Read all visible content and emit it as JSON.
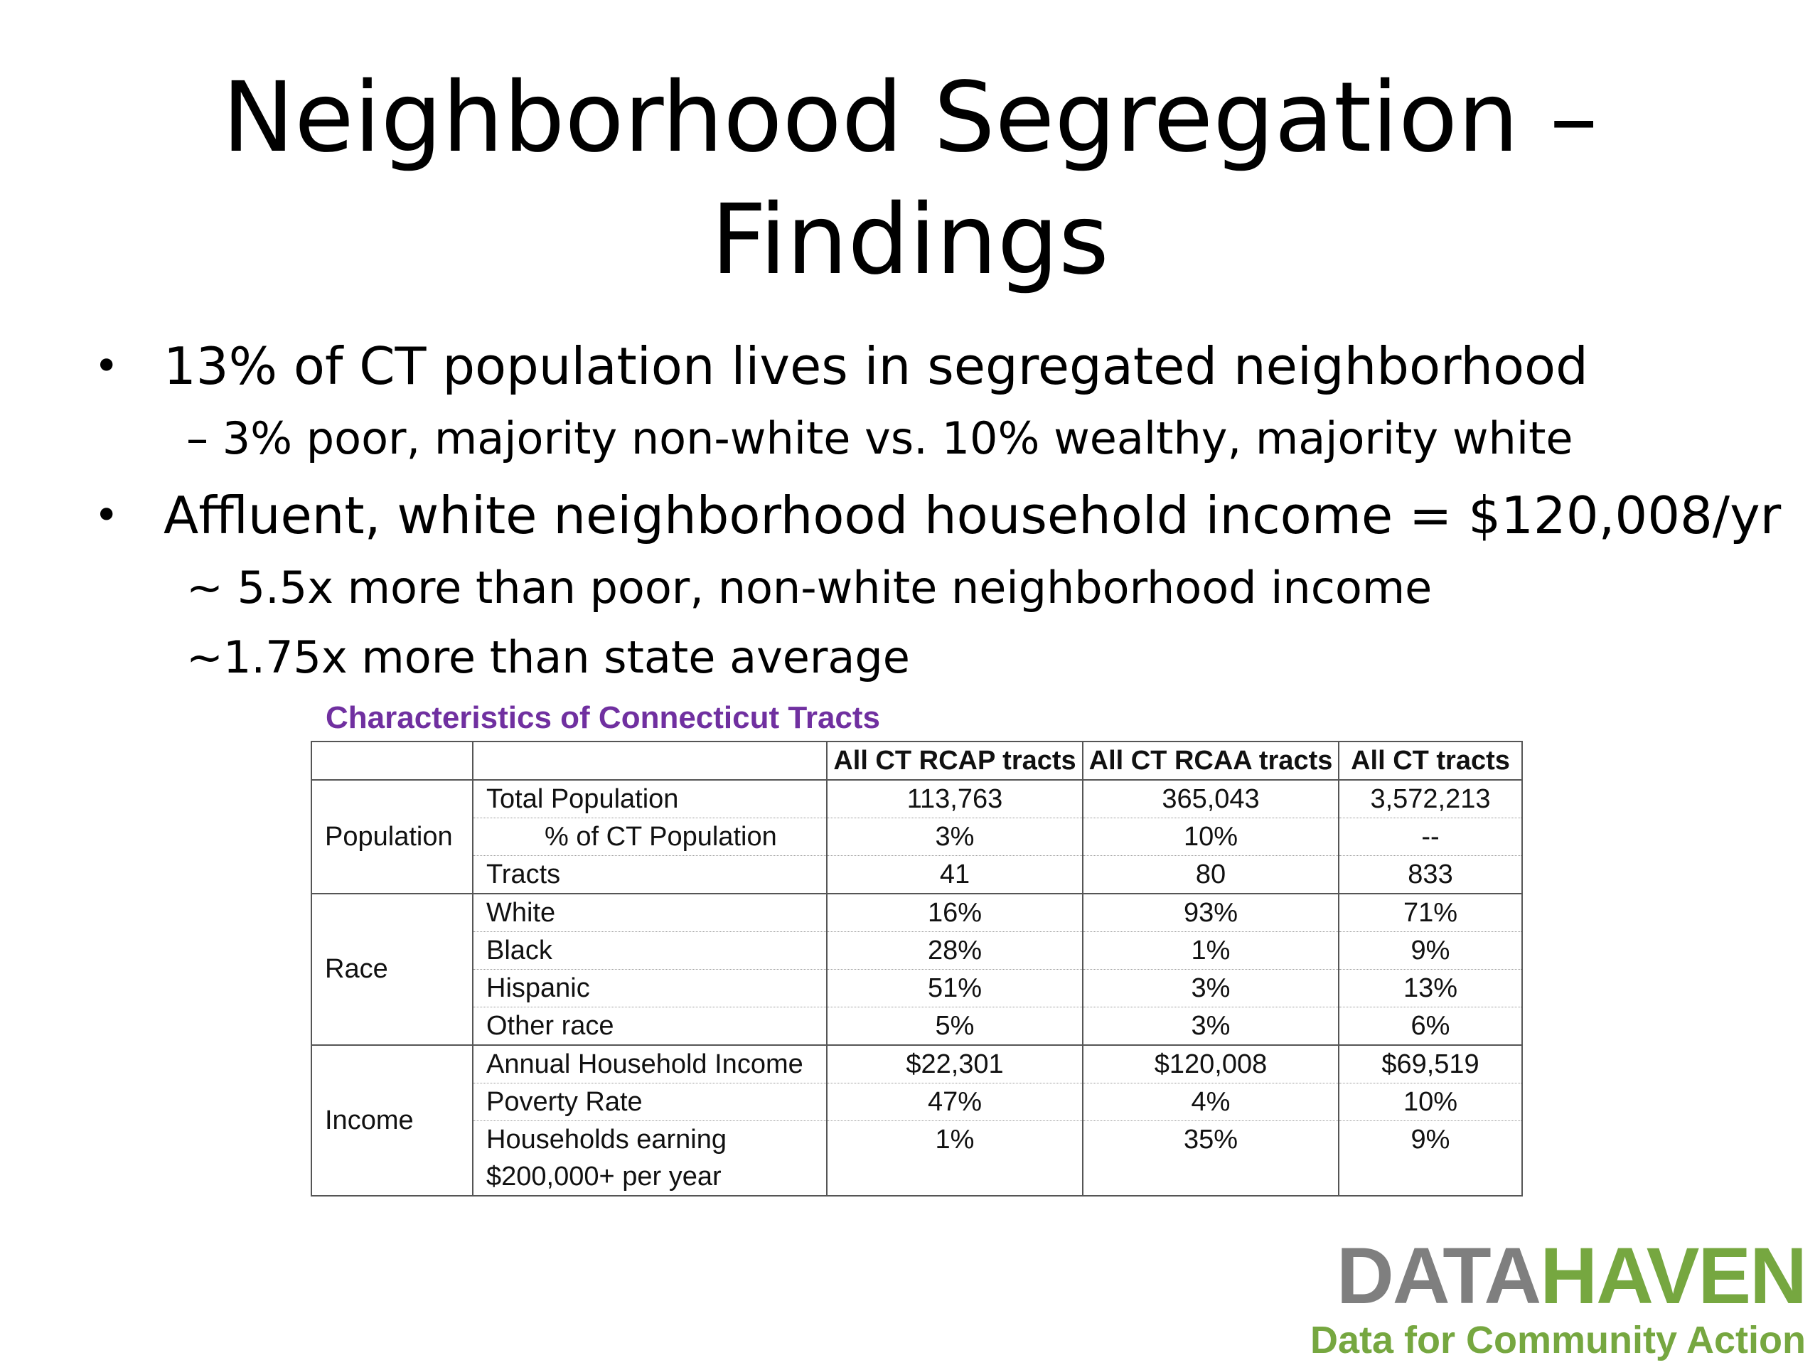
{
  "slide": {
    "title_line1": "Neighborhood Segregation –",
    "title_line2": "Findings"
  },
  "bullets": [
    {
      "text": "13% of CT population lives in segregated neighborhood",
      "subs": [
        "–  3% poor, majority non-white vs. 10% wealthy, majority white"
      ]
    },
    {
      "text": "Affluent, white neighborhood household income = $120,008/yr",
      "subs": [
        "~ 5.5x more than poor, non-white neighborhood income",
        "~1.75x more than state average"
      ]
    }
  ],
  "bullet_symbol": "•",
  "table": {
    "caption": "Characteristics of Connecticut Tracts",
    "headers": [
      "",
      "",
      "All CT RCAP tracts",
      "All CT RCAA tracts",
      "All CT tracts"
    ],
    "groups": [
      {
        "name": "Population",
        "rows": [
          {
            "label": "Total Population",
            "values": [
              "113,763",
              "365,043",
              "3,572,213"
            ]
          },
          {
            "label": "% of CT Population",
            "values": [
              "3%",
              "10%",
              "--"
            ]
          },
          {
            "label": "Tracts",
            "values": [
              "41",
              "80",
              "833"
            ]
          }
        ]
      },
      {
        "name": "Race",
        "rows": [
          {
            "label": "White",
            "values": [
              "16%",
              "93%",
              "71%"
            ]
          },
          {
            "label": "Black",
            "values": [
              "28%",
              "1%",
              "9%"
            ]
          },
          {
            "label": "Hispanic",
            "values": [
              "51%",
              "3%",
              "13%"
            ]
          },
          {
            "label": "Other race",
            "values": [
              "5%",
              "3%",
              "6%"
            ]
          }
        ]
      },
      {
        "name": "Income",
        "rows": [
          {
            "label": "Annual Household Income",
            "values": [
              "$22,301",
              "$120,008",
              "$69,519"
            ]
          },
          {
            "label": "Poverty Rate",
            "values": [
              "47%",
              "4%",
              "10%"
            ]
          },
          {
            "label": "Households earning",
            "label_line2": "$200,000+ per year",
            "values": [
              "1%",
              "35%",
              "9%"
            ]
          }
        ]
      }
    ]
  },
  "logo": {
    "part1": "DATA",
    "part2": "HAVEN",
    "tagline": "Data for Community Action",
    "colors": {
      "gray": "#7f7f7f",
      "green": "#76a740"
    }
  },
  "caption_color": "#7030a0"
}
